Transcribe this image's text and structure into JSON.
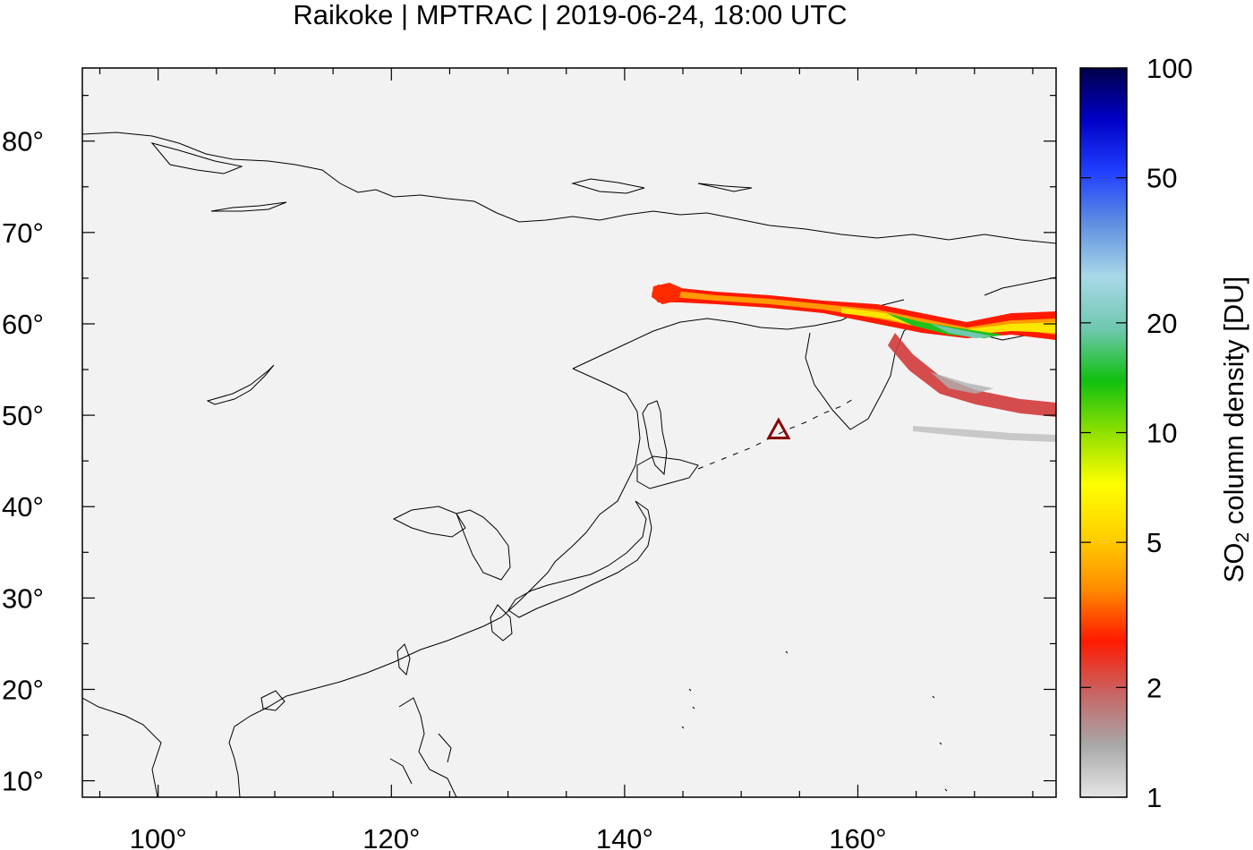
{
  "title": "Raikoke | MPTRAC | 2019-06-24, 18:00 UTC",
  "colorbar": {
    "label_main": "SO",
    "label_sub": "2",
    "label_rest": " column density [DU]",
    "ticks": [
      {
        "value": 1,
        "label": "1"
      },
      {
        "value": 2,
        "label": "2"
      },
      {
        "value": 5,
        "label": "5"
      },
      {
        "value": 10,
        "label": "10"
      },
      {
        "value": 20,
        "label": "20"
      },
      {
        "value": 50,
        "label": "50"
      },
      {
        "value": 100,
        "label": "100"
      }
    ],
    "range": [
      1,
      100
    ],
    "scale": "log",
    "colors": [
      "#e6e6e6",
      "#a8a8a8",
      "#c86464",
      "#ff1a00",
      "#ff8c00",
      "#ffd000",
      "#ffff00",
      "#90e000",
      "#10c010",
      "#70c8b0",
      "#a8d8e8",
      "#6090e0",
      "#2040ff",
      "#0000c8",
      "#00004a"
    ]
  },
  "map": {
    "lon_range": [
      93.5,
      177
    ],
    "lat_range": [
      8.2,
      88
    ],
    "lon_ticks": [
      {
        "value": 100,
        "label": "100°"
      },
      {
        "value": 120,
        "label": "120°"
      },
      {
        "value": 140,
        "label": "140°"
      },
      {
        "value": 160,
        "label": "160°"
      }
    ],
    "lat_ticks": [
      {
        "value": 10,
        "label": "10°"
      },
      {
        "value": 20,
        "label": "20°"
      },
      {
        "value": 30,
        "label": "30°"
      },
      {
        "value": 40,
        "label": "40°"
      },
      {
        "value": 50,
        "label": "50°"
      },
      {
        "value": 60,
        "label": "60°"
      },
      {
        "value": 70,
        "label": "70°"
      },
      {
        "value": 80,
        "label": "80°"
      }
    ],
    "volcano": {
      "lon": 153.2,
      "lat": 48.3,
      "color": "#8b0000"
    }
  }
}
